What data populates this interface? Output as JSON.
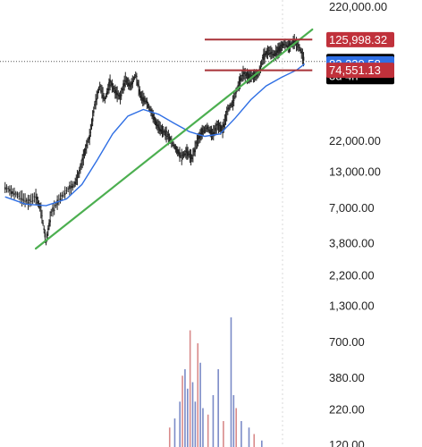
{
  "chart_data": {
    "type": "candlestick",
    "scale": "log",
    "y_ticks": [
      "220,000.00",
      "22,000.00",
      "13,000.00",
      "7,000.00",
      "3,800.00",
      "2,200.00",
      "1,300.00",
      "700.00",
      "380.00",
      "220.00",
      "120.00"
    ],
    "y_tick_values": [
      220000,
      22000,
      13000,
      7000,
      3800,
      2200,
      1300,
      700,
      380,
      220,
      120
    ],
    "price_tags": {
      "resistance": {
        "label": "125,998.32",
        "value": 125998.32,
        "color": "#c0313b"
      },
      "last": {
        "label": "86,657.45",
        "sub_label": "3d 4h",
        "value": 86657.45,
        "color": "#000000"
      },
      "moving_average": {
        "label": "83,230.58",
        "value": 83230.58,
        "color": "#2f6fe4"
      },
      "support": {
        "label": "74,551.13",
        "value": 74551.13,
        "color": "#c0313b"
      }
    },
    "colors": {
      "trendline": "#4caf50",
      "moving_average_line": "#2f6fe4",
      "candle_up": "#222222",
      "candle_down": "#222222",
      "volume_up": "#7b8bc7",
      "volume_down": "#d88a8a",
      "level_lines": "#a83238",
      "last_price_line": "#555555"
    },
    "price_path": [
      [
        0,
        10000
      ],
      [
        0.03,
        9200
      ],
      [
        0.06,
        8500
      ],
      [
        0.09,
        7800
      ],
      [
        0.12,
        8600
      ],
      [
        0.14,
        6800
      ],
      [
        0.16,
        3900
      ],
      [
        0.18,
        6500
      ],
      [
        0.21,
        8100
      ],
      [
        0.24,
        9500
      ],
      [
        0.27,
        10500
      ],
      [
        0.29,
        13000
      ],
      [
        0.31,
        18000
      ],
      [
        0.33,
        24000
      ],
      [
        0.35,
        41000
      ],
      [
        0.37,
        57000
      ],
      [
        0.39,
        45000
      ],
      [
        0.41,
        61000
      ],
      [
        0.43,
        52000
      ],
      [
        0.45,
        47000
      ],
      [
        0.47,
        64000
      ],
      [
        0.49,
        57000
      ],
      [
        0.51,
        69000
      ],
      [
        0.53,
        48000
      ],
      [
        0.55,
        44000
      ],
      [
        0.57,
        37000
      ],
      [
        0.59,
        30000
      ],
      [
        0.61,
        27000
      ],
      [
        0.63,
        25000
      ],
      [
        0.65,
        22000
      ],
      [
        0.67,
        19000
      ],
      [
        0.69,
        17000
      ],
      [
        0.71,
        18500
      ],
      [
        0.73,
        16500
      ],
      [
        0.75,
        22000
      ],
      [
        0.77,
        26000
      ],
      [
        0.79,
        28000
      ],
      [
        0.81,
        25000
      ],
      [
        0.83,
        29000
      ],
      [
        0.85,
        27000
      ],
      [
        0.87,
        38000
      ],
      [
        0.89,
        43000
      ],
      [
        0.91,
        57000
      ],
      [
        0.93,
        71000
      ],
      [
        0.95,
        67000
      ],
      [
        0.97,
        68000
      ],
      [
        0.99,
        70000
      ],
      [
        1.01,
        95000
      ],
      [
        1.03,
        104000
      ],
      [
        1.05,
        98000
      ],
      [
        1.07,
        106000
      ],
      [
        1.09,
        118000
      ],
      [
        1.11,
        112000
      ],
      [
        1.13,
        123000
      ],
      [
        1.15,
        110000
      ],
      [
        1.17,
        86657
      ]
    ],
    "ma_path": [
      [
        0,
        8500
      ],
      [
        0.08,
        7500
      ],
      [
        0.16,
        7300
      ],
      [
        0.24,
        8200
      ],
      [
        0.3,
        10500
      ],
      [
        0.36,
        16000
      ],
      [
        0.42,
        25000
      ],
      [
        0.48,
        34000
      ],
      [
        0.54,
        38000
      ],
      [
        0.6,
        35000
      ],
      [
        0.66,
        30000
      ],
      [
        0.72,
        26000
      ],
      [
        0.78,
        24000
      ],
      [
        0.84,
        25000
      ],
      [
        0.9,
        33000
      ],
      [
        0.96,
        45000
      ],
      [
        1.02,
        57000
      ],
      [
        1.08,
        66000
      ],
      [
        1.14,
        75000
      ],
      [
        1.17,
        83230
      ]
    ],
    "trendline": [
      [
        0.12,
        3500
      ],
      [
        1.2,
        150000
      ]
    ],
    "resistance_segment": [
      0.78,
      1.2,
      125998
    ],
    "support_segment": [
      0.78,
      1.2,
      74551
    ],
    "volume_bars": [
      [
        0.64,
        0.15
      ],
      [
        0.66,
        0.22
      ],
      [
        0.68,
        0.35
      ],
      [
        0.69,
        0.55
      ],
      [
        0.7,
        0.6
      ],
      [
        0.71,
        0.45
      ],
      [
        0.72,
        0.9
      ],
      [
        0.73,
        0.5
      ],
      [
        0.74,
        0.35
      ],
      [
        0.75,
        0.8
      ],
      [
        0.76,
        0.65
      ],
      [
        0.77,
        0.3
      ],
      [
        0.79,
        0.25
      ],
      [
        0.81,
        0.4
      ],
      [
        0.83,
        0.6
      ],
      [
        0.85,
        0.2
      ],
      [
        0.88,
        1.0
      ],
      [
        0.89,
        0.4
      ],
      [
        0.9,
        0.3
      ],
      [
        0.92,
        0.2
      ],
      [
        0.95,
        0.15
      ],
      [
        0.97,
        0.1
      ],
      [
        1.0,
        0.05
      ]
    ]
  }
}
